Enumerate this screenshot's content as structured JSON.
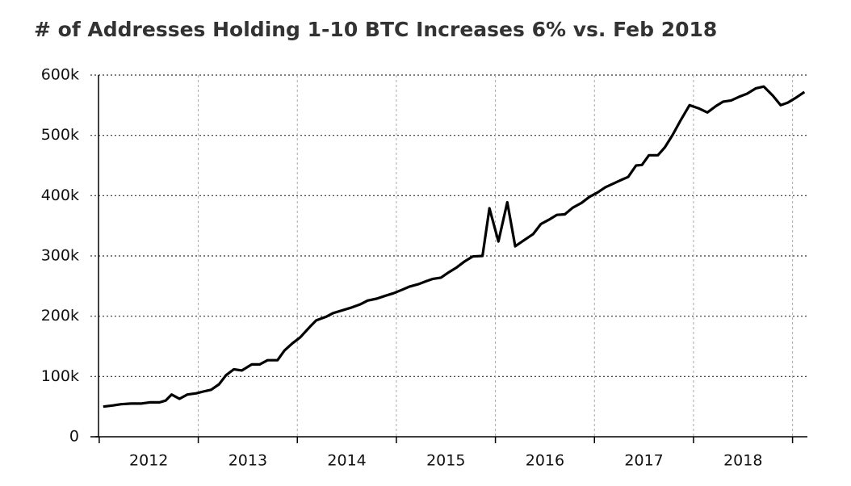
{
  "chart_data": {
    "type": "line",
    "title": "# of Addresses Holding 1-10 BTC Increases 6% vs. Feb 2018",
    "color": "#000000",
    "grid": true,
    "xlim": [
      2011.96,
      2019.15
    ],
    "xticks": [
      {
        "value": 2012.5,
        "label": "2012"
      },
      {
        "value": 2013.5,
        "label": "2013"
      },
      {
        "value": 2014.5,
        "label": "2014"
      },
      {
        "value": 2015.5,
        "label": "2015"
      },
      {
        "value": 2016.5,
        "label": "2016"
      },
      {
        "value": 2017.5,
        "label": "2017"
      },
      {
        "value": 2018.5,
        "label": "2018"
      }
    ],
    "xgrid": [
      2012,
      2013,
      2014,
      2015,
      2016,
      2017,
      2018,
      2019
    ],
    "ylim": [
      0,
      600000
    ],
    "yticks": [
      0,
      {
        "value": 100000,
        "label": "100k"
      },
      {
        "value": 200000,
        "label": "200k"
      },
      {
        "value": 300000,
        "label": "300k"
      },
      {
        "value": 400000,
        "label": "400k"
      },
      {
        "value": 500000,
        "label": "500k"
      },
      {
        "value": 600000,
        "label": "600k"
      }
    ],
    "x": [
      2012.04,
      2012.14,
      2012.22,
      2012.32,
      2012.42,
      2012.51,
      2012.61,
      2012.67,
      2012.73,
      2012.81,
      2012.89,
      2012.98,
      2013.05,
      2013.13,
      2013.21,
      2013.28,
      2013.36,
      2013.44,
      2013.54,
      2013.62,
      2013.7,
      2013.8,
      2013.87,
      2013.95,
      2014.03,
      2014.13,
      2014.19,
      2014.29,
      2014.36,
      2014.46,
      2014.54,
      2014.64,
      2014.71,
      2014.8,
      2014.89,
      2014.97,
      2015.06,
      2015.13,
      2015.22,
      2015.3,
      2015.37,
      2015.45,
      2015.53,
      2015.61,
      2015.69,
      2015.77,
      2015.87,
      2015.94,
      2016.03,
      2016.12,
      2016.2,
      2016.28,
      2016.38,
      2016.46,
      2016.54,
      2016.62,
      2016.7,
      2016.78,
      2016.87,
      2016.95,
      2017.03,
      2017.11,
      2017.19,
      2017.27,
      2017.34,
      2017.42,
      2017.48,
      2017.55,
      2017.64,
      2017.71,
      2017.79,
      2017.87,
      2017.96,
      2018.05,
      2018.14,
      2018.23,
      2018.3,
      2018.38,
      2018.46,
      2018.54,
      2018.63,
      2018.71,
      2018.8,
      2018.88,
      2018.95,
      2019.04,
      2019.12
    ],
    "series": [
      {
        "values": [
          50000,
          52000,
          54000,
          55000,
          55000,
          57000,
          57000,
          60000,
          70000,
          63000,
          70000,
          72000,
          75000,
          78000,
          87000,
          102000,
          112000,
          110000,
          120000,
          120000,
          127000,
          127000,
          143000,
          155000,
          165000,
          183000,
          193000,
          199000,
          205000,
          210000,
          214000,
          220000,
          226000,
          229000,
          234000,
          238000,
          244000,
          249000,
          253000,
          258000,
          262000,
          264000,
          273000,
          281000,
          291000,
          299000,
          300000,
          379000,
          324000,
          389000,
          316000,
          325000,
          336000,
          353000,
          360000,
          368000,
          369000,
          380000,
          388000,
          398000,
          405000,
          414000,
          420000,
          426000,
          431000,
          450000,
          451000,
          467000,
          467000,
          480000,
          501000,
          525000,
          550000,
          545000,
          538000,
          549000,
          556000,
          558000,
          564000,
          569000,
          578000,
          581000,
          566000,
          550000,
          554000,
          563000,
          572000
        ]
      }
    ]
  }
}
